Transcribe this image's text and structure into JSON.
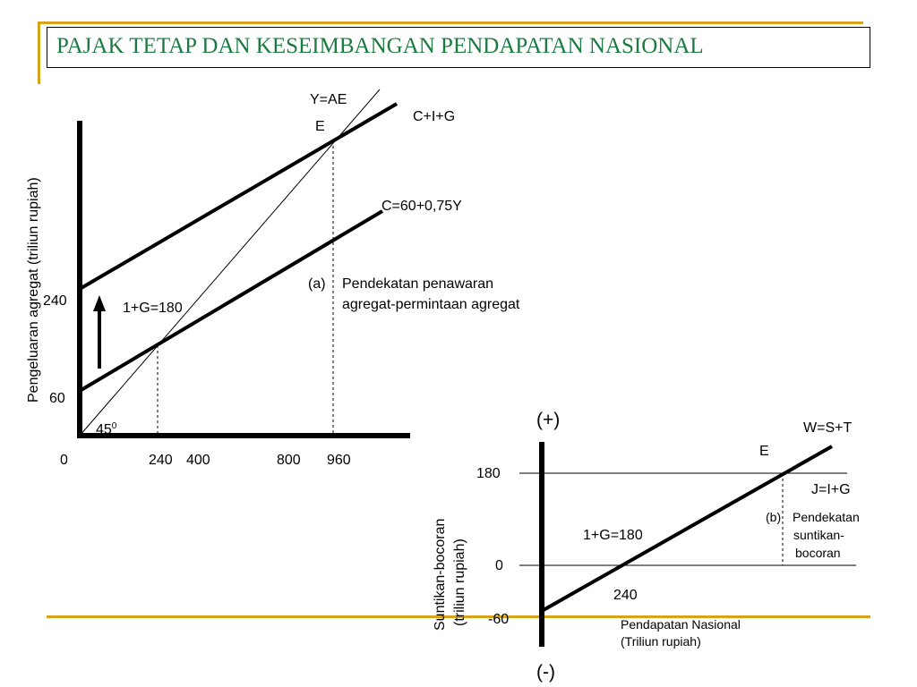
{
  "slide": {
    "title": "PAJAK TETAP DAN KESEIMBANGAN PENDAPATAN NASIONAL",
    "accent_color": "#d9a21b",
    "title_color": "#1a7a3f"
  },
  "panel_a": {
    "y_axis_label": "Pengeluaran agregat (triliun rupiah)",
    "y_ticks": [
      "240",
      "60"
    ],
    "x_ticks": [
      "0",
      "240",
      "400",
      "800",
      "960"
    ],
    "label_yae": "Y=AE",
    "label_e": "E",
    "label_cig": "C+I+G",
    "label_c": "C=60+0,75Y",
    "label_ig": "1+G=180",
    "angle_label": "45",
    "angle_sup": "0",
    "caption_tag": "(a)",
    "caption_line1": "Pendekatan  penawaran",
    "caption_line2": "agregat-permintaan  agregat"
  },
  "panel_b": {
    "plus_sign": "(+)",
    "minus_sign": "(-)",
    "label_w": "W=S+T",
    "label_e": "E",
    "label_j": "J=I+G",
    "y_axis_label_1": "Suntikan-bocoran",
    "y_axis_label_2": "(triliun rupiah)",
    "y_ticks": [
      "180",
      "0",
      "-60"
    ],
    "label_ig": "1+G=180",
    "label_240": "240",
    "x_axis_label_1": "Pendapatan Nasional",
    "x_axis_label_2": "(Triliun rupiah)",
    "caption_tag": "(b)",
    "caption_line1": "Pendekatan",
    "caption_line2": "suntikan-",
    "caption_line3": "bocoran"
  }
}
